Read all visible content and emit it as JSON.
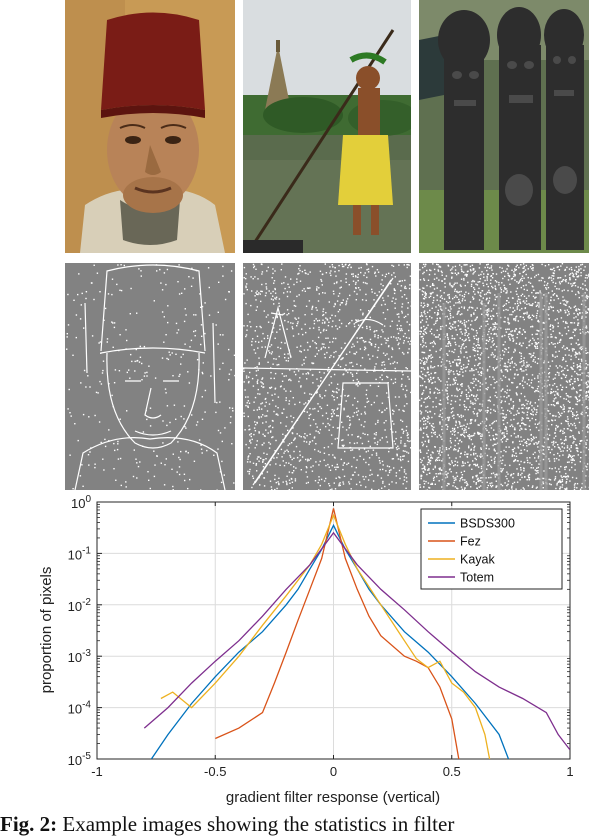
{
  "images": {
    "photos": [
      {
        "name": "fez-photo",
        "skin": "#b88358",
        "bg": "#c89a55",
        "hat": "#7a1c16",
        "robe": "#d8cfb8"
      },
      {
        "name": "kayak-photo",
        "sky": "#d9dde0",
        "water": "#5a6b4d",
        "trees": "#3f6b32",
        "skirt": "#e3cf3a",
        "skin": "#8a4f2a"
      },
      {
        "name": "totem-photo",
        "bg": "#5f7050",
        "stone": "#2d2d2d",
        "grass": "#6d8a4a"
      }
    ],
    "edge_maps": [
      {
        "name": "fez-edge-map",
        "density": 0.05
      },
      {
        "name": "kayak-edge-map",
        "density": 0.22
      },
      {
        "name": "totem-edge-map",
        "density": 0.48
      }
    ]
  },
  "chart_data": {
    "type": "line",
    "title": "",
    "xlabel": "gradient filter response (vertical)",
    "ylabel": "proportion of pixels",
    "xlim": [
      -1,
      1
    ],
    "ylim": [
      1e-05,
      1
    ],
    "yscale": "log",
    "grid": true,
    "legend_position": "top-right",
    "x_ticks": [
      "-1",
      "-0.5",
      "0",
      "0.5",
      "1"
    ],
    "y_ticks": [
      {
        "base": "10",
        "exp": "0"
      },
      {
        "base": "10",
        "exp": "-1"
      },
      {
        "base": "10",
        "exp": "-2"
      },
      {
        "base": "10",
        "exp": "-3"
      },
      {
        "base": "10",
        "exp": "-4"
      },
      {
        "base": "10",
        "exp": "-5"
      }
    ],
    "series": [
      {
        "name": "BSDS300",
        "color": "#0072BD",
        "x": [
          -0.77,
          -0.7,
          -0.6,
          -0.5,
          -0.4,
          -0.3,
          -0.2,
          -0.15,
          -0.1,
          -0.05,
          0,
          0.05,
          0.1,
          0.15,
          0.2,
          0.3,
          0.4,
          0.5,
          0.6,
          0.7,
          0.74
        ],
        "y": [
          1e-05,
          3e-05,
          0.00012,
          0.0004,
          0.0012,
          0.003,
          0.01,
          0.02,
          0.05,
          0.12,
          0.35,
          0.12,
          0.05,
          0.02,
          0.01,
          0.003,
          0.0012,
          0.0004,
          0.00012,
          3e-05,
          1e-05
        ]
      },
      {
        "name": "Fez",
        "color": "#D95319",
        "x": [
          -0.5,
          -0.4,
          -0.3,
          -0.25,
          -0.2,
          -0.15,
          -0.1,
          -0.05,
          0,
          0.05,
          0.1,
          0.15,
          0.2,
          0.3,
          0.35,
          0.4,
          0.45,
          0.5,
          0.53
        ],
        "y": [
          2.5e-05,
          4e-05,
          8e-05,
          0.0003,
          0.0012,
          0.005,
          0.02,
          0.08,
          0.75,
          0.08,
          0.02,
          0.006,
          0.0025,
          0.001,
          0.0008,
          0.0006,
          0.00025,
          6e-05,
          1e-05
        ]
      },
      {
        "name": "Kayak",
        "color": "#EDB120",
        "x": [
          -0.73,
          -0.68,
          -0.6,
          -0.5,
          -0.4,
          -0.3,
          -0.2,
          -0.1,
          -0.05,
          0,
          0.05,
          0.1,
          0.2,
          0.3,
          0.35,
          0.4,
          0.45,
          0.5,
          0.55,
          0.6,
          0.64,
          0.66
        ],
        "y": [
          0.00015,
          0.0002,
          0.0001,
          0.0003,
          0.001,
          0.004,
          0.015,
          0.06,
          0.15,
          0.55,
          0.15,
          0.05,
          0.01,
          0.002,
          0.0009,
          0.0006,
          0.0008,
          0.0003,
          0.0002,
          0.0001,
          3e-05,
          1e-05
        ]
      },
      {
        "name": "Totem",
        "color": "#7E2F8E",
        "x": [
          -0.8,
          -0.7,
          -0.6,
          -0.5,
          -0.4,
          -0.3,
          -0.2,
          -0.1,
          0,
          0.1,
          0.2,
          0.3,
          0.4,
          0.5,
          0.6,
          0.7,
          0.8,
          0.9,
          0.95,
          1.0
        ],
        "y": [
          4e-05,
          0.0001,
          0.0003,
          0.0008,
          0.002,
          0.006,
          0.02,
          0.06,
          0.25,
          0.06,
          0.02,
          0.008,
          0.003,
          0.0012,
          0.0005,
          0.00025,
          0.00015,
          8e-05,
          3e-05,
          1.5e-05
        ]
      }
    ]
  },
  "caption": {
    "label": "Fig. 2:",
    "text": " Example images showing the statistics in filter"
  }
}
